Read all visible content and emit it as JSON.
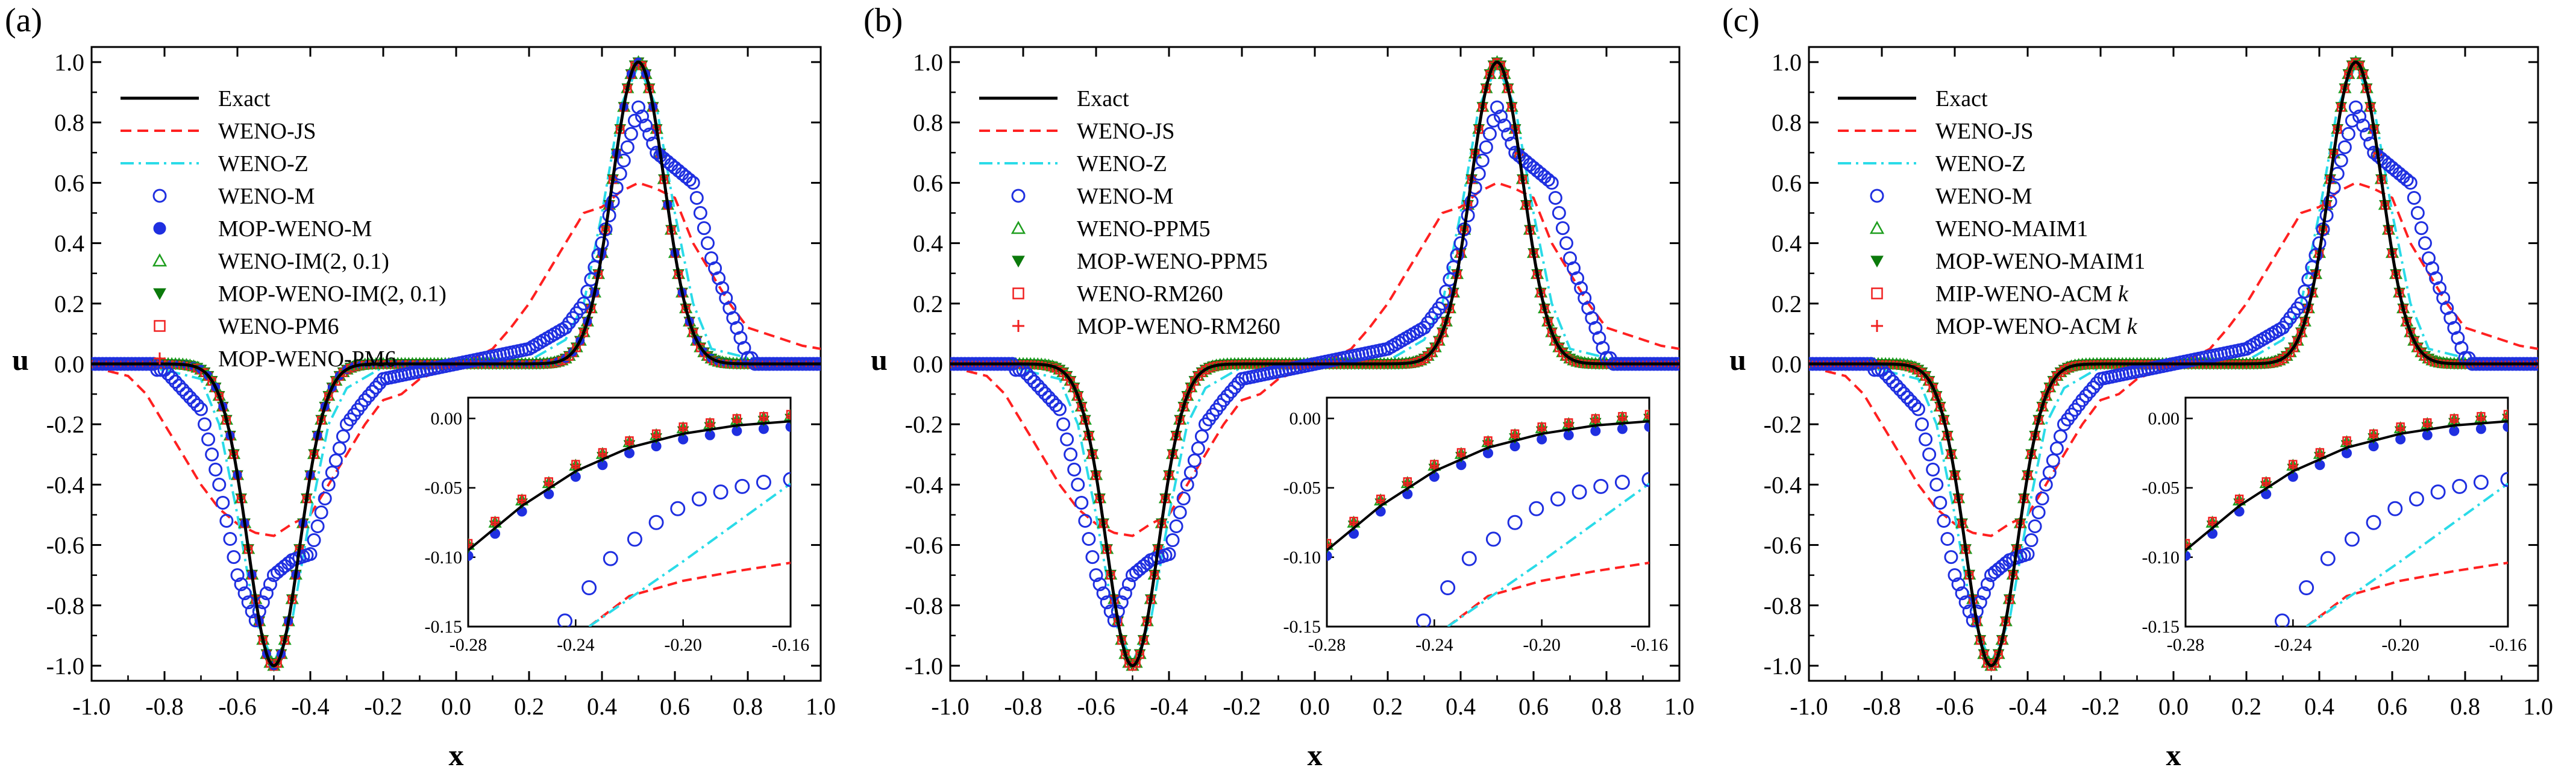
{
  "figure": {
    "common": {
      "xlabel": "x",
      "ylabel": "u",
      "xlim": [
        -1.0,
        1.0
      ],
      "ylim": [
        -1.05,
        1.05
      ],
      "xticks": [
        "-1.0",
        "-0.8",
        "-0.6",
        "-0.4",
        "-0.2",
        "0.0",
        "0.2",
        "0.4",
        "0.6",
        "0.8",
        "1.0"
      ],
      "yticks": [
        "-1.0",
        "-0.8",
        "-0.6",
        "-0.4",
        "-0.2",
        "0.0",
        "0.2",
        "0.4",
        "0.6",
        "0.8",
        "1.0"
      ],
      "inset_xlim": [
        -0.28,
        -0.16
      ],
      "inset_ylim": [
        -0.15,
        0.015
      ],
      "inset_xticks": [
        "-0.28",
        "-0.24",
        "-0.20",
        "-0.16"
      ],
      "inset_yticks": [
        "0.00",
        "-0.05",
        "-0.10",
        "-0.15"
      ]
    },
    "colors": {
      "exact": "#000000",
      "weno_js": "#ff2020",
      "weno_z": "#2adbe8",
      "weno_m": "#1f2fe0",
      "green": "#1e9e1e",
      "green_dark": "#0b7a0b",
      "red": "#f02020"
    }
  },
  "chart_data": [
    {
      "type": "line",
      "panel_label": "(a)",
      "title": "",
      "xlabel": "x",
      "ylabel": "u",
      "legend": {
        "position": "top-left",
        "entries": [
          "Exact",
          "WENO-JS",
          "WENO-Z",
          "WENO-M",
          "MOP-WENO-M",
          "WENO-IM(2, 0.1)",
          "MOP-WENO-IM(2, 0.1)",
          "WENO-PM6",
          "MOP-WENO-PM6"
        ]
      },
      "exact": {
        "amplitude": 1.0,
        "centers": [
          -0.5,
          0.5
        ],
        "width": 0.1,
        "note": "u = exp(-((x-0.5)/0.1)^2) - exp(-((x+0.5)/0.1)^2)"
      },
      "series": [
        {
          "name": "Exact",
          "style": "solid-line",
          "x": [
            -1.0,
            -0.8,
            -0.7,
            -0.6,
            -0.55,
            -0.5,
            -0.45,
            -0.4,
            -0.3,
            -0.2,
            0.0,
            0.2,
            0.3,
            0.4,
            0.45,
            0.5,
            0.55,
            0.6,
            0.7,
            0.8,
            1.0
          ],
          "y": [
            0.0,
            0.0,
            -0.02,
            -0.37,
            -0.78,
            -1.0,
            -0.78,
            -0.37,
            -0.02,
            0.0,
            0.0,
            0.0,
            0.02,
            0.37,
            0.78,
            1.0,
            0.78,
            0.37,
            0.02,
            0.0,
            0.0
          ]
        },
        {
          "name": "WENO-JS",
          "style": "dashed-line",
          "x": [
            -1.0,
            -0.9,
            -0.85,
            -0.8,
            -0.75,
            -0.7,
            -0.65,
            -0.6,
            -0.55,
            -0.5,
            -0.45,
            -0.4,
            -0.35,
            -0.3,
            -0.25,
            -0.2,
            -0.15,
            -0.1,
            0.0,
            0.05,
            0.1,
            0.15,
            0.2,
            0.25,
            0.3,
            0.35,
            0.4,
            0.45,
            0.5,
            0.55,
            0.6,
            0.65,
            0.7,
            0.75,
            0.8,
            0.85,
            0.9,
            0.95,
            1.0
          ],
          "y": [
            -0.01,
            -0.04,
            -0.1,
            -0.2,
            -0.3,
            -0.4,
            -0.48,
            -0.53,
            -0.56,
            -0.57,
            -0.53,
            -0.5,
            -0.4,
            -0.3,
            -0.2,
            -0.12,
            -0.1,
            -0.05,
            0.0,
            0.02,
            0.05,
            0.12,
            0.2,
            0.3,
            0.4,
            0.5,
            0.52,
            0.57,
            0.6,
            0.58,
            0.55,
            0.4,
            0.3,
            0.2,
            0.12,
            0.1,
            0.08,
            0.06,
            0.05
          ]
        },
        {
          "name": "WENO-Z",
          "style": "dashdot-line",
          "x": [
            -1.0,
            -0.8,
            -0.7,
            -0.65,
            -0.6,
            -0.55,
            -0.5,
            -0.45,
            -0.4,
            -0.35,
            -0.3,
            -0.2,
            0.0,
            0.2,
            0.3,
            0.35,
            0.4,
            0.45,
            0.5,
            0.55,
            0.6,
            0.65,
            0.7,
            0.8,
            1.0
          ],
          "y": [
            -0.01,
            -0.02,
            -0.05,
            -0.2,
            -0.5,
            -0.85,
            -0.99,
            -0.85,
            -0.5,
            -0.2,
            -0.08,
            -0.01,
            0.0,
            0.01,
            0.08,
            0.2,
            0.5,
            0.85,
            0.99,
            0.85,
            0.5,
            0.2,
            0.05,
            0.02,
            0.01
          ]
        },
        {
          "name": "WENO-M",
          "style": "open-circle",
          "x": [
            -0.8,
            -0.7,
            -0.65,
            -0.6,
            -0.55,
            -0.5,
            -0.45,
            -0.4,
            -0.35,
            -0.3,
            -0.25,
            -0.2,
            0.0,
            0.2,
            0.3,
            0.35,
            0.4,
            0.45,
            0.5,
            0.55,
            0.6,
            0.65,
            0.7,
            0.8
          ],
          "y": [
            -0.02,
            -0.15,
            -0.4,
            -0.7,
            -0.85,
            -0.7,
            -0.65,
            -0.63,
            -0.4,
            -0.2,
            -0.12,
            -0.05,
            0.0,
            0.05,
            0.12,
            0.2,
            0.4,
            0.63,
            0.85,
            0.7,
            0.65,
            0.6,
            0.35,
            0.02
          ]
        },
        {
          "name": "MOP-WENO-M",
          "style": "filled-circle",
          "note": "coincides with Exact"
        },
        {
          "name": "WENO-IM(2, 0.1)",
          "style": "open-triangle",
          "note": "coincides with Exact"
        },
        {
          "name": "MOP-WENO-IM(2, 0.1)",
          "style": "filled-down-triangle",
          "note": "coincides with Exact"
        },
        {
          "name": "WENO-PM6",
          "style": "open-square",
          "note": "coincides with Exact"
        },
        {
          "name": "MOP-WENO-PM6",
          "style": "plus",
          "note": "coincides with Exact"
        }
      ],
      "inset": {
        "xlim": [
          -0.28,
          -0.16
        ],
        "ylim": [
          -0.15,
          0.015
        ],
        "series": [
          {
            "name": "Exact",
            "x": [
              -0.28,
              -0.26,
              -0.24,
              -0.22,
              -0.2,
              -0.18,
              -0.16
            ],
            "y": [
              -0.095,
              -0.063,
              -0.038,
              -0.021,
              -0.011,
              -0.005,
              -0.002
            ]
          },
          {
            "name": "WENO-JS",
            "x": [
              -0.235,
              -0.22,
              -0.2,
              -0.18,
              -0.16
            ],
            "y": [
              -0.15,
              -0.128,
              -0.117,
              -0.11,
              -0.104
            ]
          },
          {
            "name": "WENO-Z",
            "x": [
              -0.235,
              -0.2,
              -0.16
            ],
            "y": [
              -0.15,
              -0.103,
              -0.047
            ]
          },
          {
            "name": "WENO-M",
            "x": [
              -0.244,
              -0.235,
              -0.227,
              -0.218,
              -0.21,
              -0.202,
              -0.194,
              -0.186,
              -0.178,
              -0.17,
              -0.16
            ],
            "y": [
              -0.146,
              -0.122,
              -0.101,
              -0.087,
              -0.075,
              -0.065,
              -0.058,
              -0.053,
              -0.049,
              -0.046,
              -0.044
            ]
          }
        ]
      }
    },
    {
      "type": "line",
      "panel_label": "(b)",
      "title": "",
      "xlabel": "x",
      "ylabel": "u",
      "legend": {
        "position": "top-left",
        "entries": [
          "Exact",
          "WENO-JS",
          "WENO-Z",
          "WENO-M",
          "WENO-PPM5",
          "MOP-WENO-PPM5",
          "WENO-RM260",
          "MOP-WENO-RM260"
        ]
      },
      "series": [
        {
          "name": "Exact",
          "style": "solid-line",
          "note": "same as panel (a)"
        },
        {
          "name": "WENO-JS",
          "style": "dashed-line",
          "note": "same as panel (a)"
        },
        {
          "name": "WENO-Z",
          "style": "dashdot-line",
          "note": "same as panel (a)"
        },
        {
          "name": "WENO-M",
          "style": "open-circle",
          "note": "same as panel (a)"
        },
        {
          "name": "WENO-PPM5",
          "style": "open-triangle",
          "note": "coincides with Exact"
        },
        {
          "name": "MOP-WENO-PPM5",
          "style": "filled-down-triangle",
          "note": "coincides with Exact"
        },
        {
          "name": "WENO-RM260",
          "style": "open-square",
          "note": "coincides with Exact"
        },
        {
          "name": "MOP-WENO-RM260",
          "style": "plus",
          "note": "coincides with Exact"
        }
      ]
    },
    {
      "type": "line",
      "panel_label": "(c)",
      "title": "",
      "xlabel": "x",
      "ylabel": "u",
      "legend": {
        "position": "top-left",
        "entries": [
          "Exact",
          "WENO-JS",
          "WENO-Z",
          "WENO-M",
          "WENO-MAIM1",
          "MOP-WENO-MAIM1",
          "MIP-WENO-ACMk",
          "MOP-WENO-ACMk"
        ],
        "italic_suffix": "k"
      },
      "series": [
        {
          "name": "Exact",
          "style": "solid-line",
          "note": "same as panel (a)"
        },
        {
          "name": "WENO-JS",
          "style": "dashed-line",
          "note": "same as panel (a)"
        },
        {
          "name": "WENO-Z",
          "style": "dashdot-line",
          "note": "same as panel (a)"
        },
        {
          "name": "WENO-M",
          "style": "open-circle",
          "note": "same as panel (a)"
        },
        {
          "name": "WENO-MAIM1",
          "style": "open-triangle",
          "note": "coincides with Exact"
        },
        {
          "name": "MOP-WENO-MAIM1",
          "style": "filled-down-triangle",
          "note": "coincides with Exact"
        },
        {
          "name": "MIP-WENO-ACMk",
          "style": "open-square",
          "note": "coincides with Exact"
        },
        {
          "name": "MOP-WENO-ACMk",
          "style": "plus",
          "note": "coincides with Exact"
        }
      ]
    }
  ]
}
